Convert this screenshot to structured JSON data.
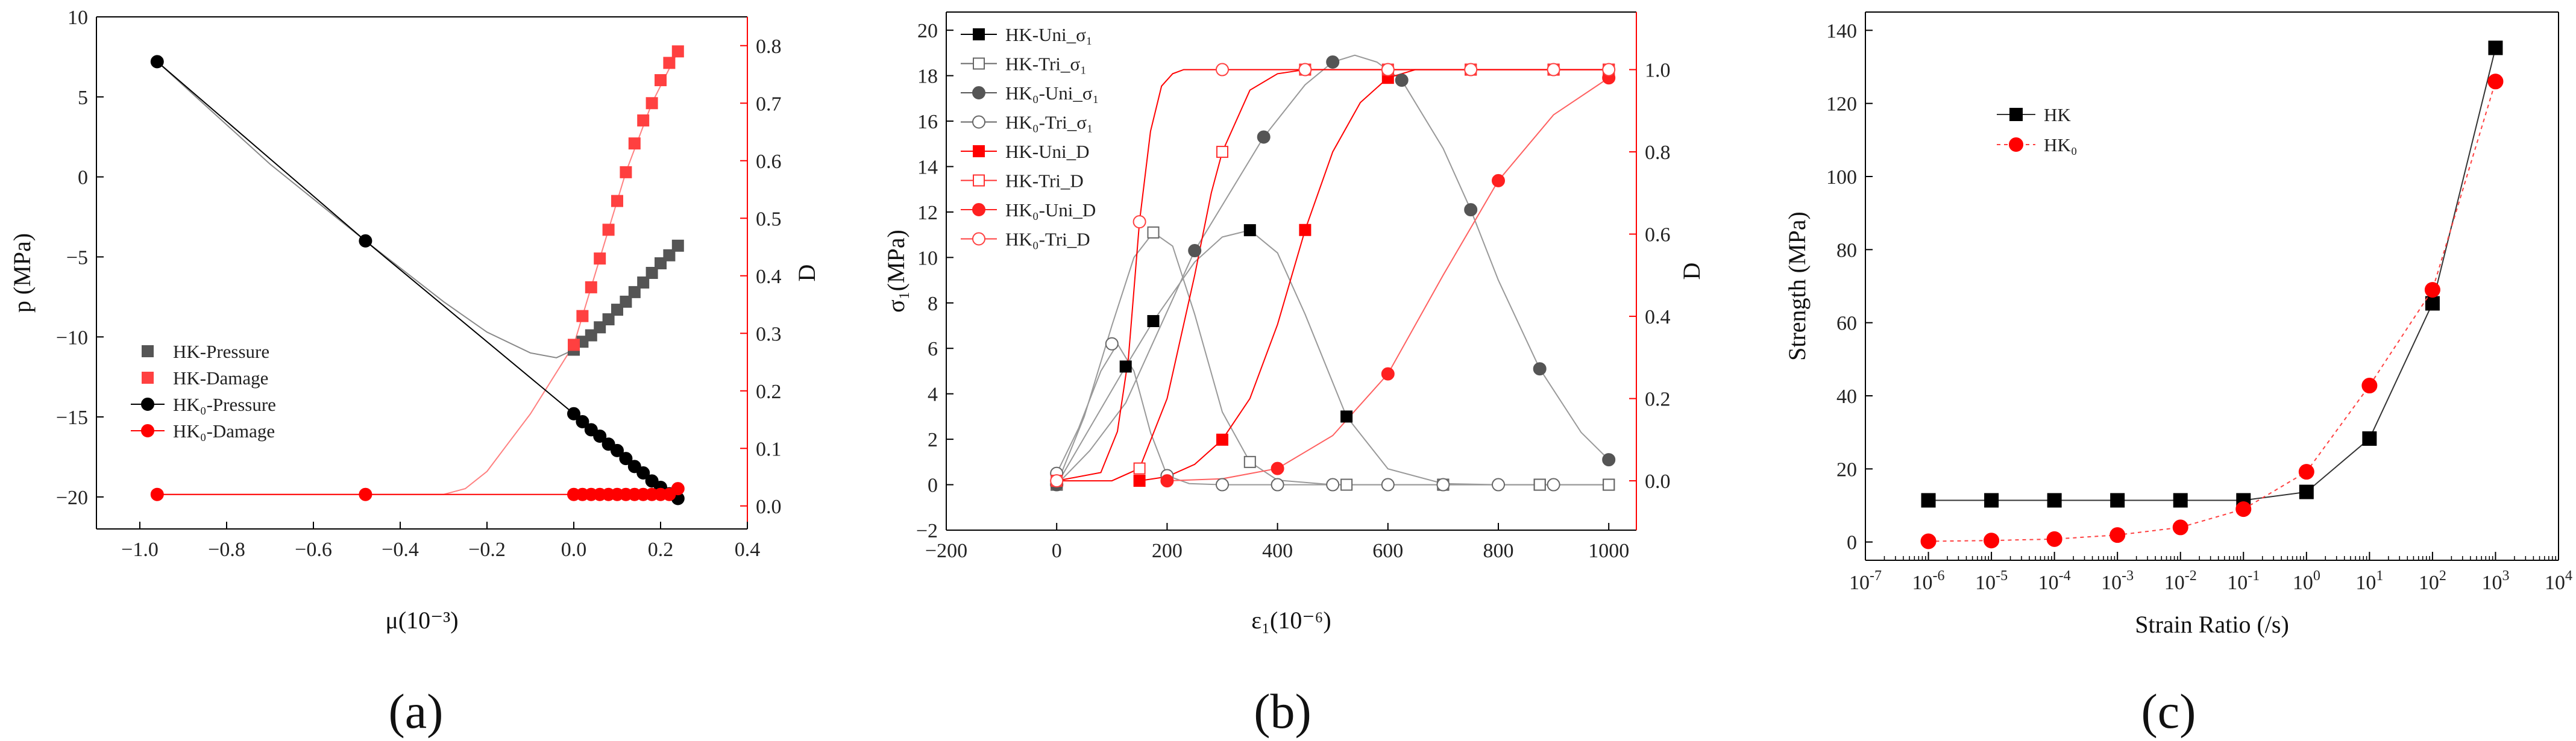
{
  "chart_data": [
    {
      "panel_label": "(a)",
      "type": "line",
      "xlabel": "μ(10⁻³)",
      "ylabel_left": "p (MPa)",
      "ylabel_right": "D",
      "xlim": [
        -1.1,
        0.4
      ],
      "ylim_left": [
        -22,
        10
      ],
      "ylim_right": [
        -0.04,
        0.85
      ],
      "xticks": [
        -1.0,
        -0.8,
        -0.6,
        -0.4,
        -0.2,
        0.0,
        0.2,
        0.4
      ],
      "xtick_labels": [
        "−1.0",
        "−0.8",
        "−0.6",
        "−0.4",
        "−0.2",
        "0.0",
        "0.2",
        "0.4"
      ],
      "yticks_left": [
        -20,
        -15,
        -10,
        -5,
        0,
        5,
        10
      ],
      "ytick_labels_left": [
        "−20",
        "−15",
        "−10",
        "−5",
        "0",
        "5",
        "10"
      ],
      "yticks_right": [
        0.0,
        0.1,
        0.2,
        0.3,
        0.4,
        0.5,
        0.6,
        0.7,
        0.8
      ],
      "ytick_labels_right": [
        "0.0",
        "0.1",
        "0.2",
        "0.3",
        "0.4",
        "0.5",
        "0.6",
        "0.7",
        "0.8"
      ],
      "legend_position": "left-middle",
      "series": [
        {
          "name": "HK-Pressure",
          "axis": "left",
          "marker": "square",
          "color": "#555555",
          "x": [
            0.0,
            0.02,
            0.04,
            0.06,
            0.08,
            0.1,
            0.12,
            0.14,
            0.16,
            0.18,
            0.2,
            0.22,
            0.24
          ],
          "y": [
            -10.8,
            -10.3,
            -9.9,
            -9.4,
            -8.9,
            -8.3,
            -7.8,
            -7.2,
            -6.6,
            -6.0,
            -5.4,
            -4.9,
            -4.3
          ]
        },
        {
          "name": "HK-Damage",
          "axis": "right",
          "marker": "square",
          "color": "#ff4040",
          "x": [
            0.0,
            0.02,
            0.04,
            0.06,
            0.08,
            0.1,
            0.12,
            0.14,
            0.16,
            0.18,
            0.2,
            0.22,
            0.24
          ],
          "y": [
            0.28,
            0.33,
            0.38,
            0.43,
            0.48,
            0.53,
            0.58,
            0.63,
            0.67,
            0.7,
            0.74,
            0.77,
            0.79
          ]
        },
        {
          "name": "HK₀-Pressure",
          "axis": "left",
          "marker": "circle",
          "color": "#000000",
          "x": [
            -0.96,
            -0.48,
            0.0,
            0.02,
            0.04,
            0.06,
            0.08,
            0.1,
            0.12,
            0.14,
            0.16,
            0.18,
            0.2,
            0.22,
            0.24
          ],
          "y": [
            7.2,
            -4.0,
            -14.8,
            -15.3,
            -15.8,
            -16.2,
            -16.7,
            -17.1,
            -17.6,
            -18.1,
            -18.5,
            -19.0,
            -19.4,
            -19.8,
            -20.1
          ]
        },
        {
          "name": "HK₀-Damage",
          "axis": "right",
          "marker": "circle",
          "color": "#ff0000",
          "x": [
            -0.96,
            -0.48,
            0.0,
            0.02,
            0.04,
            0.06,
            0.08,
            0.1,
            0.12,
            0.14,
            0.16,
            0.18,
            0.2,
            0.22,
            0.24
          ],
          "y": [
            0.02,
            0.02,
            0.02,
            0.02,
            0.02,
            0.02,
            0.02,
            0.02,
            0.02,
            0.02,
            0.02,
            0.02,
            0.02,
            0.02,
            0.03
          ]
        }
      ],
      "curves": [
        {
          "axis": "left",
          "color": "#888888",
          "x": [
            -0.96,
            -0.7,
            -0.48,
            -0.3,
            -0.2,
            -0.1,
            -0.04,
            0.0,
            0.02,
            0.06,
            0.12,
            0.18,
            0.24
          ],
          "y": [
            7.2,
            0.8,
            -4.0,
            -7.8,
            -9.7,
            -11.0,
            -11.3,
            -10.8,
            -10.3,
            -9.4,
            -7.8,
            -6.0,
            -4.3
          ]
        },
        {
          "axis": "right",
          "color": "#ff8080",
          "x": [
            -0.96,
            -0.5,
            -0.3,
            -0.25,
            -0.2,
            -0.15,
            -0.1,
            -0.05,
            0.0,
            0.06,
            0.12,
            0.18,
            0.24
          ],
          "y": [
            0.02,
            0.02,
            0.02,
            0.03,
            0.06,
            0.11,
            0.16,
            0.22,
            0.28,
            0.43,
            0.58,
            0.7,
            0.79
          ]
        }
      ]
    },
    {
      "panel_label": "(b)",
      "type": "line",
      "xlabel": "ε₁(10⁻⁶)",
      "ylabel_left": "σ₁(MPa)",
      "ylabel_right": "D",
      "xlim": [
        -200,
        1050
      ],
      "ylim_left": [
        -2,
        20.8
      ],
      "ylim_right": [
        -0.12,
        1.14
      ],
      "xticks": [
        -200,
        0,
        200,
        400,
        600,
        800,
        1000
      ],
      "xtick_labels": [
        "−200",
        "0",
        "200",
        "400",
        "600",
        "800",
        "1000"
      ],
      "yticks_left": [
        -2,
        0,
        2,
        4,
        6,
        8,
        10,
        12,
        14,
        16,
        18,
        20
      ],
      "ytick_labels_left": [
        "−2",
        "0",
        "2",
        "4",
        "6",
        "8",
        "10",
        "12",
        "14",
        "16",
        "18",
        "20"
      ],
      "yticks_right": [
        0.0,
        0.2,
        0.4,
        0.6,
        0.8,
        1.0
      ],
      "ytick_labels_right": [
        "0.0",
        "0.2",
        "0.4",
        "0.6",
        "0.8",
        "1.0"
      ],
      "legend_position": "top-left",
      "series": [
        {
          "name": "HK-Uni_σ₁",
          "axis": "left",
          "marker": "square",
          "fill": true,
          "color": "#000000",
          "x": [
            0,
            125,
            175,
            350,
            525,
            700,
            875,
            1000
          ],
          "y": [
            0,
            5.2,
            7.2,
            11.2,
            3.0,
            0,
            0,
            0
          ]
        },
        {
          "name": "HK-Tri_σ₁",
          "axis": "left",
          "marker": "square",
          "fill": false,
          "color": "#666666",
          "x": [
            0,
            175,
            350,
            525,
            700,
            875,
            1000
          ],
          "y": [
            0,
            11.1,
            1.0,
            0,
            0,
            0,
            0
          ]
        },
        {
          "name": "HK₀-Uni_σ₁",
          "axis": "left",
          "marker": "circle",
          "fill": true,
          "color": "#555555",
          "x": [
            0,
            250,
            375,
            500,
            625,
            750,
            875,
            1000
          ],
          "y": [
            0,
            10.3,
            15.3,
            18.6,
            17.8,
            12.1,
            5.1,
            1.1
          ]
        },
        {
          "name": "HK₀-Tri_σ₁",
          "axis": "left",
          "marker": "circle",
          "fill": false,
          "color": "#666666",
          "x": [
            0,
            100,
            200,
            300,
            400,
            500,
            600,
            700,
            800,
            900
          ],
          "y": [
            0.5,
            6.2,
            0.4,
            0,
            0,
            0,
            0,
            0,
            0,
            0
          ]
        },
        {
          "name": "HK-Uni_D",
          "axis": "right",
          "marker": "square",
          "fill": true,
          "color": "#ff0000",
          "x": [
            150,
            300,
            450,
            600,
            750,
            900,
            1000
          ],
          "y": [
            0.0,
            0.1,
            0.61,
            0.98,
            1.0,
            1.0,
            1.0
          ]
        },
        {
          "name": "HK-Tri_D",
          "axis": "right",
          "marker": "square",
          "fill": false,
          "color": "#ff3030",
          "x": [
            0,
            150,
            300,
            450,
            600,
            750,
            900,
            1000
          ],
          "y": [
            0.0,
            0.03,
            0.8,
            1.0,
            1.0,
            1.0,
            1.0,
            1.0
          ]
        },
        {
          "name": "HK₀-Uni_D",
          "axis": "right",
          "marker": "circle",
          "fill": true,
          "color": "#ff2020",
          "x": [
            200,
            400,
            600,
            800,
            1000
          ],
          "y": [
            0.0,
            0.03,
            0.26,
            0.73,
            0.98
          ]
        },
        {
          "name": "HK₀-Tri_D",
          "axis": "right",
          "marker": "circle",
          "fill": false,
          "color": "#ff4040",
          "x": [
            0,
            150,
            300,
            450,
            600,
            750,
            900,
            1000
          ],
          "y": [
            0.0,
            0.63,
            1.0,
            1.0,
            1.0,
            1.0,
            1.0,
            1.0
          ]
        }
      ],
      "curves": [
        {
          "axis": "left",
          "color": "#999999",
          "x": [
            0,
            60,
            125,
            175,
            250,
            300,
            350,
            400,
            450,
            525,
            600,
            700,
            800,
            1000
          ],
          "y": [
            0,
            2.5,
            5.2,
            7.2,
            9.8,
            10.9,
            11.2,
            10.2,
            7.5,
            3.0,
            0.7,
            0.05,
            0,
            0
          ]
        },
        {
          "axis": "left",
          "color": "#999999",
          "x": [
            0,
            50,
            100,
            140,
            175,
            210,
            250,
            300,
            350,
            400,
            500,
            700,
            1000
          ],
          "y": [
            0,
            3.0,
            7.0,
            10.0,
            11.1,
            10.5,
            7.5,
            3.2,
            1.0,
            0.2,
            0,
            0,
            0
          ]
        },
        {
          "axis": "left",
          "color": "#999999",
          "x": [
            0,
            60,
            125,
            250,
            375,
            450,
            500,
            540,
            580,
            625,
            700,
            750,
            800,
            875,
            950,
            1000
          ],
          "y": [
            0,
            1.5,
            3.6,
            10.3,
            15.3,
            17.6,
            18.6,
            18.9,
            18.6,
            17.8,
            14.8,
            12.1,
            9.0,
            5.1,
            2.3,
            1.1
          ]
        },
        {
          "axis": "left",
          "color": "#999999",
          "x": [
            0,
            40,
            80,
            110,
            140,
            170,
            200,
            240,
            300,
            400,
            1000
          ],
          "y": [
            0.5,
            2.5,
            5.0,
            6.2,
            5.0,
            2.3,
            0.4,
            0.05,
            0,
            0,
            0
          ]
        },
        {
          "axis": "right",
          "color": "#ff0000",
          "x": [
            150,
            200,
            250,
            300,
            350,
            400,
            450,
            500,
            550,
            600,
            650,
            700,
            1000
          ],
          "y": [
            0.0,
            0.01,
            0.04,
            0.1,
            0.2,
            0.38,
            0.61,
            0.8,
            0.92,
            0.98,
            1.0,
            1.0,
            1.0
          ]
        },
        {
          "axis": "right",
          "color": "#ff0000",
          "x": [
            0,
            100,
            150,
            200,
            250,
            280,
            300,
            350,
            400,
            450,
            1000
          ],
          "y": [
            0.0,
            0.0,
            0.03,
            0.2,
            0.5,
            0.7,
            0.8,
            0.95,
            0.99,
            1.0,
            1.0
          ]
        },
        {
          "axis": "right",
          "color": "#ff6060",
          "x": [
            200,
            300,
            400,
            500,
            600,
            700,
            800,
            900,
            1000
          ],
          "y": [
            0.0,
            0.005,
            0.03,
            0.11,
            0.26,
            0.5,
            0.73,
            0.89,
            0.98
          ]
        },
        {
          "axis": "right",
          "color": "#ff0000",
          "x": [
            0,
            80,
            110,
            130,
            150,
            170,
            190,
            210,
            230,
            260,
            300,
            1000
          ],
          "y": [
            0.0,
            0.02,
            0.12,
            0.3,
            0.63,
            0.85,
            0.96,
            0.99,
            1.0,
            1.0,
            1.0,
            1.0
          ]
        }
      ]
    },
    {
      "panel_label": "(c)",
      "type": "line",
      "xscale": "log",
      "xlabel": "Strain Ratio (/s)",
      "ylabel": "Strength (MPa)",
      "xlim_exp": [
        -7,
        4
      ],
      "ylim": [
        -5,
        145
      ],
      "xtick_exponents": [
        "-7",
        "-6",
        "-5",
        "-4",
        "-3",
        "-2",
        "-1",
        "0",
        "1",
        "2",
        "3",
        "4"
      ],
      "xtick_base": "10",
      "yticks": [
        0,
        20,
        40,
        60,
        80,
        100,
        120,
        140
      ],
      "ytick_labels": [
        "0",
        "20",
        "40",
        "60",
        "80",
        "100",
        "120",
        "140"
      ],
      "legend_position": "top-left",
      "series": [
        {
          "name": "HK",
          "marker": "square",
          "color": "#000000",
          "line_color": "#333333",
          "dashed": false,
          "x_exp": [
            -6,
            -5,
            -4,
            -3,
            -2,
            -1,
            0,
            1,
            2,
            3
          ],
          "y": [
            11.4,
            11.4,
            11.4,
            11.4,
            11.4,
            11.4,
            13.7,
            28.3,
            65.3,
            135.2
          ]
        },
        {
          "name": "HK₀",
          "marker": "circle",
          "color": "#ff0000",
          "line_color": "#ff4040",
          "dashed": true,
          "x_exp": [
            -6,
            -5,
            -4,
            -3,
            -2,
            -1,
            0,
            1,
            2,
            3
          ],
          "y": [
            0.2,
            0.4,
            0.8,
            1.9,
            4.0,
            9.0,
            19.2,
            42.8,
            69.0,
            126.0
          ]
        }
      ]
    }
  ]
}
